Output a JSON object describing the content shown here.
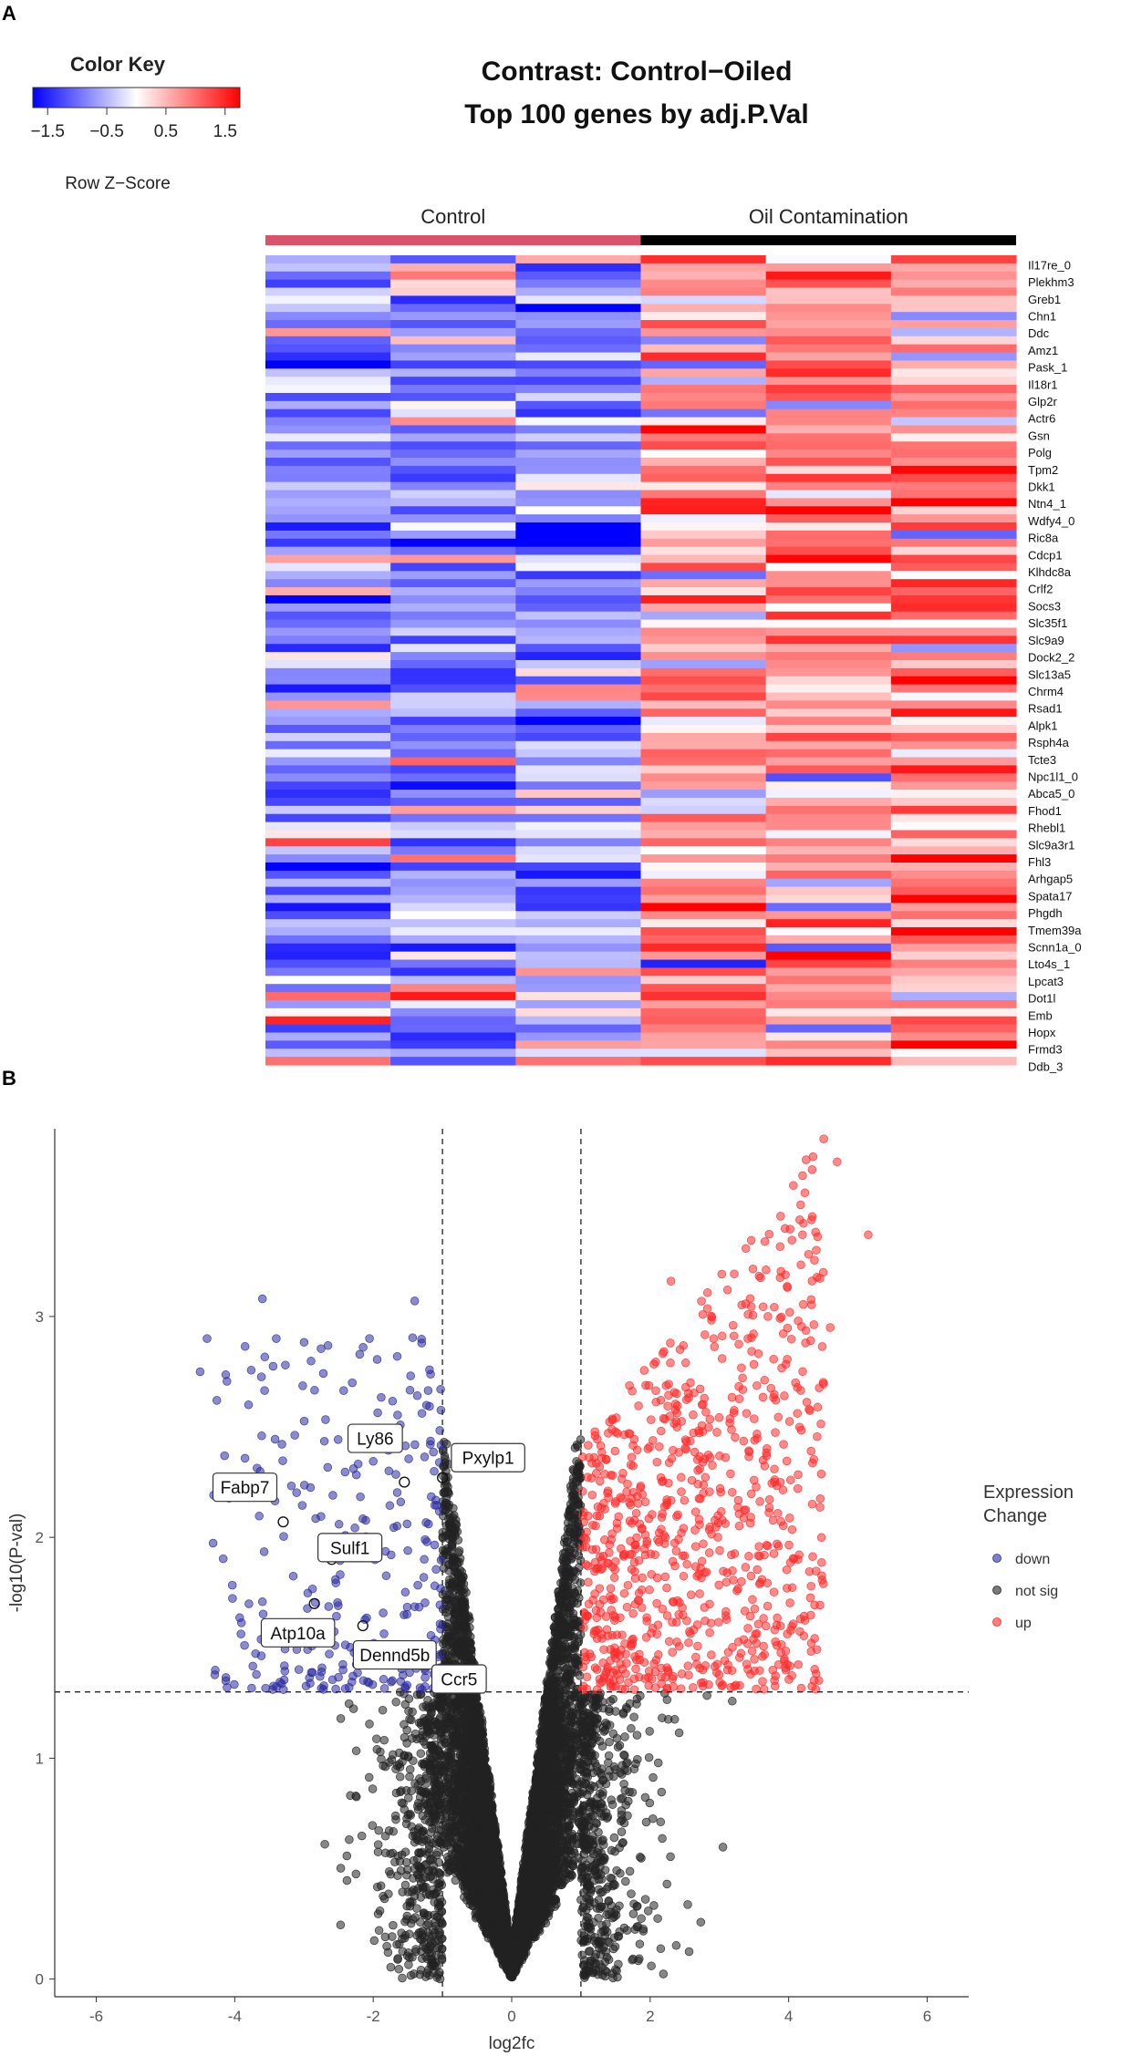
{
  "panels": {
    "a": "A",
    "b": "B"
  },
  "chart_data": [
    {
      "type": "heatmap",
      "title": "Contrast: Control−Oiled",
      "subtitle": "Top 100 genes by adj.P.Val",
      "color_key": {
        "title": "Color Key",
        "label": "Row Z−Score",
        "ticks": [
          "−1.5",
          "−0.5",
          "0.5",
          "1.5"
        ],
        "range": [
          -1.75,
          1.75
        ],
        "colors": {
          "low": "#0000ff",
          "mid": "#ffffff",
          "high": "#ff0000"
        }
      },
      "groups": [
        {
          "name": "Control",
          "color": "#d9536a",
          "columns": 3
        },
        {
          "name": "Oil Contamination",
          "color": "#000000",
          "columns": 3
        }
      ],
      "row_count": 100,
      "gene_labels": [
        "Il17re_0",
        "Plekhm3",
        "Greb1",
        "Chn1",
        "Ddc",
        "Amz1",
        "Pask_1",
        "Il18r1",
        "Glp2r",
        "Actr6",
        "Gsn",
        "Polg",
        "Tpm2",
        "Dkk1",
        "Ntn4_1",
        "Wdfy4_0",
        "Ric8a",
        "Cdcp1",
        "Klhdc8a",
        "Crlf2",
        "Socs3",
        "Slc35f1",
        "Slc9a9",
        "Dock2_2",
        "Slc13a5",
        "Chrm4",
        "Rsad1",
        "Alpk1",
        "Rsph4a",
        "Tcte3",
        "Npc1l1_0",
        "Abca5_0",
        "Fhod1",
        "Rhebl1",
        "Slc9a3r1",
        "Fhl3",
        "Arhgap5",
        "Spata17",
        "Phgdh",
        "Tmem39a",
        "Scnn1a_0",
        "Lto4s_1",
        "Lpcat3",
        "Dot1l",
        "Emb",
        "Hopx",
        "Frmd3",
        "Ddb_3"
      ]
    },
    {
      "type": "scatter",
      "xlabel": "log2fc",
      "ylabel": "-log10(P-val)",
      "xlim": [
        -6.6,
        6.6
      ],
      "ylim": [
        -0.08,
        3.85
      ],
      "x_ticks": [
        "-6",
        "-4",
        "-2",
        "0",
        "2",
        "4",
        "6"
      ],
      "x_tick_values": [
        -6,
        -4,
        -2,
        0,
        2,
        4,
        6
      ],
      "y_ticks": [
        "0",
        "1",
        "2",
        "3"
      ],
      "y_tick_values": [
        0,
        1,
        2,
        3
      ],
      "thresholds": {
        "log2fc": [
          -1,
          1
        ],
        "neg_log10_p": 1.3
      },
      "legend": {
        "title_lines": [
          "Expression",
          "Change"
        ],
        "entries": [
          {
            "label": "down",
            "color": "#2b2ba0"
          },
          {
            "label": "not sig",
            "color": "#222222"
          },
          {
            "label": "up",
            "color": "#ff2a2a"
          }
        ]
      },
      "counts": {
        "down": 260,
        "not_sig": 9000,
        "up": 820
      },
      "highlighted": [
        {
          "gene": "Ly86",
          "x": -1.55,
          "y": 2.25
        },
        {
          "gene": "Pxylp1",
          "x": -1.0,
          "y": 2.27
        },
        {
          "gene": "Fabp7",
          "x": -3.3,
          "y": 2.07
        },
        {
          "gene": "Sulf1",
          "x": -2.6,
          "y": 1.9
        },
        {
          "gene": "Atp10a",
          "x": -2.85,
          "y": 1.7
        },
        {
          "gene": "Dennd5b",
          "x": -2.15,
          "y": 1.6
        },
        {
          "gene": "Ccr5",
          "x": -1.05,
          "y": 1.4
        }
      ]
    }
  ]
}
